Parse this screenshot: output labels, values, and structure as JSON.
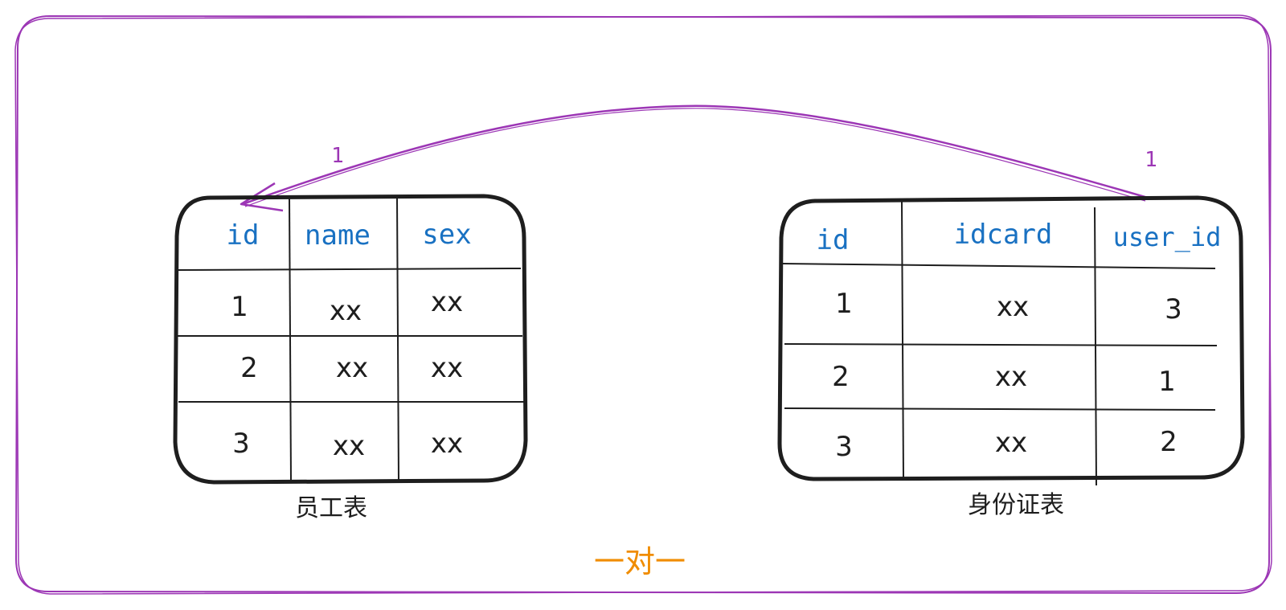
{
  "diagram": {
    "title": "一对一",
    "colors": {
      "frame": "#9c36b5",
      "header_text": "#1971c2",
      "cell_text": "#1e1e1e",
      "title_text": "#f08c00",
      "border": "#1e1e1e"
    },
    "relation": {
      "from_cardinality": "1",
      "to_cardinality": "1"
    }
  },
  "employee_table": {
    "caption": "员工表",
    "headers": [
      "id",
      "name",
      "sex"
    ],
    "rows": [
      [
        "1",
        "xx",
        "xx"
      ],
      [
        "2",
        "xx",
        "xx"
      ],
      [
        "3",
        "xx",
        "xx"
      ]
    ]
  },
  "idcard_table": {
    "caption": "身份证表",
    "headers": [
      "id",
      "idcard",
      "user_id"
    ],
    "rows": [
      [
        "1",
        "xx",
        "3"
      ],
      [
        "2",
        "xx",
        "1"
      ],
      [
        "3",
        "xx",
        "2"
      ]
    ]
  }
}
